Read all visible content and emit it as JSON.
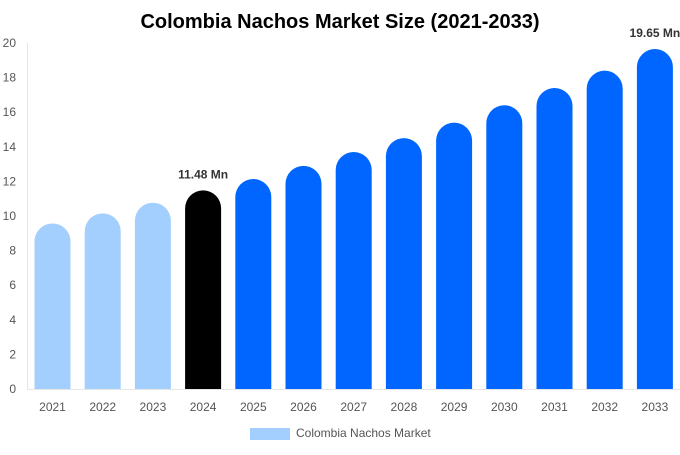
{
  "chart_data": {
    "type": "bar",
    "title": "Colombia Nachos Market Size (2021-2033)",
    "xlabel": "",
    "ylabel": "",
    "ylim": [
      0,
      20
    ],
    "yticks": [
      0,
      2,
      4,
      6,
      8,
      10,
      12,
      14,
      16,
      18,
      20
    ],
    "grid": false,
    "legend_position": "bottom",
    "categories": [
      "2021",
      "2022",
      "2023",
      "2024",
      "2025",
      "2026",
      "2027",
      "2028",
      "2029",
      "2030",
      "2031",
      "2032",
      "2033"
    ],
    "series": [
      {
        "name": "Colombia Nachos Market",
        "values": [
          9.57,
          10.15,
          10.77,
          11.48,
          12.14,
          12.9,
          13.7,
          14.5,
          15.4,
          16.4,
          17.4,
          18.4,
          19.65
        ]
      }
    ],
    "bar_colors": [
      "#a3cfff",
      "#a3cfff",
      "#a3cfff",
      "#000000",
      "#0066ff",
      "#0066ff",
      "#0066ff",
      "#0066ff",
      "#0066ff",
      "#0066ff",
      "#0066ff",
      "#0066ff",
      "#0066ff"
    ],
    "legend_color": "#a3cfff",
    "data_labels": [
      {
        "category": "2024",
        "text": "11.48 Mn"
      },
      {
        "category": "2033",
        "text": "19.65 Mn"
      }
    ]
  }
}
